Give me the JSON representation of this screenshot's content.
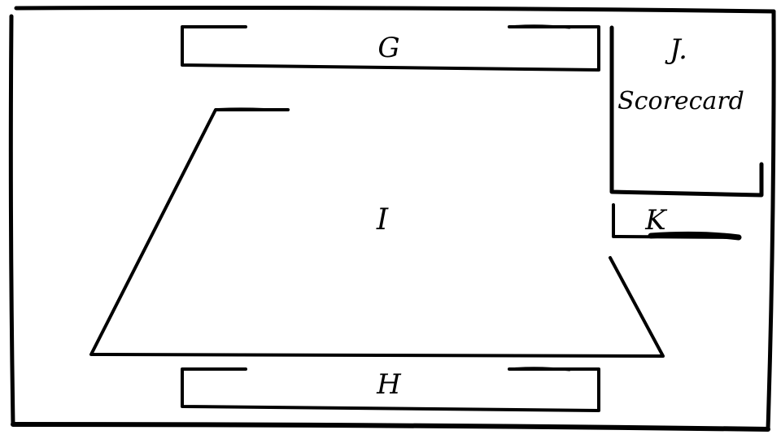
{
  "labels": {
    "top_bar": "G",
    "bottom_bar": "H",
    "field": "I",
    "scorecard_letter": "J.",
    "scorecard_title": "Scorecard",
    "small_panel": "K"
  },
  "colors": {
    "ink": "#000000",
    "paper": "#ffffff"
  }
}
